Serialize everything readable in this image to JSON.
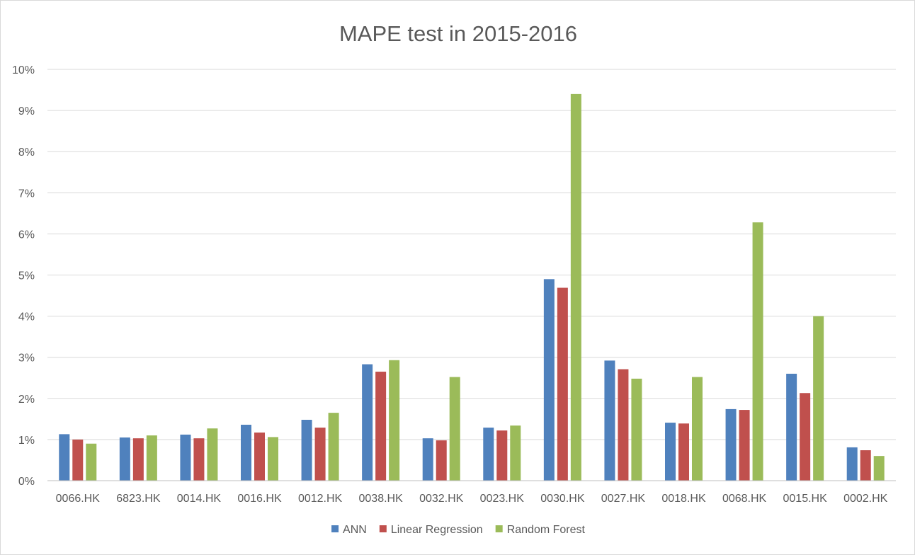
{
  "chart_data": {
    "type": "bar",
    "title": "MAPE test in 2015-2016",
    "xlabel": "",
    "ylabel": "",
    "categories": [
      "0066.HK",
      "6823.HK",
      "0014.HK",
      "0016.HK",
      "0012.HK",
      "0038.HK",
      "0032.HK",
      "0023.HK",
      "0030.HK",
      "0027.HK",
      "0018.HK",
      "0068.HK",
      "0015.HK",
      "0002.HK"
    ],
    "series": [
      {
        "name": "ANN",
        "color": "#4f81bd",
        "values": [
          1.13,
          1.05,
          1.12,
          1.36,
          1.48,
          2.83,
          1.03,
          1.29,
          4.9,
          2.92,
          1.41,
          1.74,
          2.6,
          0.81
        ]
      },
      {
        "name": "Linear Regression",
        "color": "#c0504d",
        "values": [
          1.0,
          1.03,
          1.03,
          1.17,
          1.29,
          2.65,
          0.98,
          1.22,
          4.69,
          2.71,
          1.39,
          1.72,
          2.13,
          0.74
        ]
      },
      {
        "name": "Random Forest",
        "color": "#9bbb59",
        "values": [
          0.9,
          1.1,
          1.27,
          1.06,
          1.65,
          2.93,
          2.52,
          1.34,
          9.4,
          2.48,
          2.52,
          6.28,
          4.0,
          0.6
        ]
      }
    ],
    "ylim": [
      0,
      10
    ],
    "yticks": [
      "0%",
      "1%",
      "2%",
      "3%",
      "4%",
      "5%",
      "6%",
      "7%",
      "8%",
      "9%",
      "10%"
    ],
    "y_unit": "%",
    "grid": true,
    "legend_position": "bottom"
  }
}
